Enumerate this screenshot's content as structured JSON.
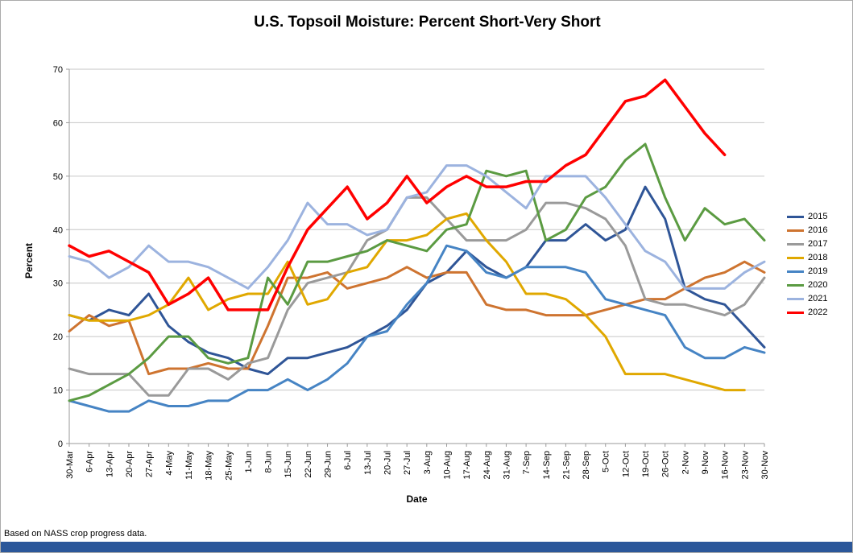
{
  "title": "U.S. Topsoil Moisture: Percent Short-Very Short",
  "footer": "Based on NASS crop progress data.",
  "chart_data": {
    "type": "line",
    "title": "U.S. Topsoil Moisture: Percent Short-Very Short",
    "xlabel": "Date",
    "ylabel": "Percent",
    "ylim": [
      0,
      70
    ],
    "ytick_interval": 10,
    "grid": true,
    "legend_position": "right",
    "categories": [
      "30-Mar",
      "6-Apr",
      "13-Apr",
      "20-Apr",
      "27-Apr",
      "4-May",
      "11-May",
      "18-May",
      "25-May",
      "1-Jun",
      "8-Jun",
      "15-Jun",
      "22-Jun",
      "29-Jun",
      "6-Jul",
      "13-Jul",
      "20-Jul",
      "27-Jul",
      "3-Aug",
      "10-Aug",
      "17-Aug",
      "24-Aug",
      "31-Aug",
      "7-Sep",
      "14-Sep",
      "21-Sep",
      "28-Sep",
      "5-Oct",
      "12-Oct",
      "19-Oct",
      "26-Oct",
      "2-Nov",
      "9-Nov",
      "16-Nov",
      "23-Nov",
      "30-Nov"
    ],
    "series": [
      {
        "name": "2015",
        "color": "#2F5597",
        "values": [
          24,
          23,
          25,
          24,
          28,
          22,
          19,
          17,
          16,
          14,
          13,
          16,
          16,
          17,
          18,
          20,
          22,
          25,
          30,
          32,
          36,
          33,
          31,
          33,
          38,
          38,
          41,
          38,
          40,
          48,
          42,
          29,
          27,
          26,
          22,
          18
        ]
      },
      {
        "name": "2016",
        "color": "#CE7430",
        "values": [
          21,
          24,
          22,
          23,
          13,
          14,
          14,
          15,
          14,
          14,
          22,
          31,
          31,
          32,
          29,
          30,
          31,
          33,
          31,
          32,
          32,
          26,
          25,
          25,
          24,
          24,
          24,
          25,
          26,
          27,
          27,
          29,
          31,
          32,
          34,
          32
        ]
      },
      {
        "name": "2017",
        "color": "#9A9A9A",
        "values": [
          14,
          13,
          13,
          13,
          9,
          9,
          14,
          14,
          12,
          15,
          16,
          25,
          30,
          31,
          32,
          38,
          40,
          46,
          46,
          42,
          38,
          38,
          38,
          40,
          45,
          45,
          44,
          42,
          37,
          27,
          26,
          26,
          25,
          24,
          26,
          31
        ]
      },
      {
        "name": "2018",
        "color": "#E0A800",
        "values": [
          24,
          23,
          23,
          23,
          24,
          26,
          31,
          25,
          27,
          28,
          28,
          34,
          26,
          27,
          32,
          33,
          38,
          38,
          39,
          42,
          43,
          38,
          34,
          28,
          28,
          27,
          24,
          20,
          13,
          13,
          13,
          12,
          11,
          10,
          10,
          null
        ]
      },
      {
        "name": "2019",
        "color": "#4684C4",
        "values": [
          8,
          7,
          6,
          6,
          8,
          7,
          7,
          8,
          8,
          10,
          10,
          12,
          10,
          12,
          15,
          20,
          21,
          26,
          30,
          37,
          36,
          32,
          31,
          33,
          33,
          33,
          32,
          27,
          26,
          25,
          24,
          18,
          16,
          16,
          18,
          17
        ]
      },
      {
        "name": "2020",
        "color": "#5B9B42",
        "values": [
          8,
          9,
          11,
          13,
          16,
          20,
          20,
          16,
          15,
          16,
          31,
          26,
          34,
          34,
          35,
          36,
          38,
          37,
          36,
          40,
          41,
          51,
          50,
          51,
          38,
          40,
          46,
          48,
          53,
          56,
          46,
          38,
          44,
          41,
          42,
          38
        ]
      },
      {
        "name": "2021",
        "color": "#9CB3DF",
        "values": [
          35,
          34,
          31,
          33,
          37,
          34,
          34,
          33,
          31,
          29,
          33,
          38,
          45,
          41,
          41,
          39,
          40,
          46,
          47,
          52,
          52,
          50,
          47,
          44,
          50,
          50,
          50,
          46,
          41,
          36,
          34,
          29,
          29,
          29,
          32,
          34
        ]
      },
      {
        "name": "2022",
        "color": "#FF0000",
        "values": [
          37,
          35,
          36,
          34,
          32,
          26,
          28,
          31,
          25,
          25,
          25,
          33,
          40,
          44,
          48,
          42,
          45,
          50,
          45,
          48,
          50,
          48,
          48,
          49,
          49,
          52,
          54,
          59,
          64,
          65,
          68,
          63,
          58,
          54,
          null,
          null
        ]
      }
    ]
  }
}
